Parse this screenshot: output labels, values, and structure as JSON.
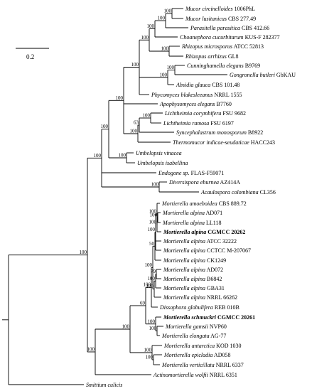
{
  "scale_bar_label": "0.2",
  "taxa": [
    {
      "id": "t1",
      "genus": "Mucor circinelloides",
      "strain": "1006PhL"
    },
    {
      "id": "t2",
      "genus": "Mucor lusitanicus",
      "strain": "CBS 277.49"
    },
    {
      "id": "t3",
      "genus": "Parasitella parasitica",
      "strain": "CBS 412.66"
    },
    {
      "id": "t4",
      "genus": "Choanephora cucurbitarum",
      "strain": "KUS-F 282377"
    },
    {
      "id": "t5",
      "genus": "Rhizopus microsporus",
      "strain": "ATCC 52813"
    },
    {
      "id": "t6",
      "genus": "Rhizopus arrhizus",
      "strain": "GL8"
    },
    {
      "id": "t7",
      "genus": "Cunninghamella elegans",
      "strain": "B9769"
    },
    {
      "id": "t8",
      "genus": "Gongronella butleri",
      "strain": "GbKAU"
    },
    {
      "id": "t9",
      "genus": "Absidia glauca",
      "strain": "CBS 101.48"
    },
    {
      "id": "t10",
      "genus": "Phycomyces blakesleeanus",
      "strain": "NRRL 1555"
    },
    {
      "id": "t11",
      "genus": "Apophysomyces elegans",
      "strain": "B7760"
    },
    {
      "id": "t12",
      "genus": "Lichtheimia corymbifera",
      "strain": "FSU 9682"
    },
    {
      "id": "t13",
      "genus": "Lichtheimia ramosa",
      "strain": "FSU 6197"
    },
    {
      "id": "t14",
      "genus": "Syncephalastrum monosporum",
      "strain": "B8922"
    },
    {
      "id": "t15",
      "genus": "Thermomucor indicae-seudaticae",
      "strain": "HACC243"
    },
    {
      "id": "t16",
      "genus": "Umbelopsis vinacea",
      "strain": ""
    },
    {
      "id": "t17",
      "genus": "Umbelopsis isabellina",
      "strain": ""
    },
    {
      "id": "t18",
      "genus": "Endogone sp.",
      "strain": "FLAS-F59071"
    },
    {
      "id": "t19",
      "genus": "Diversispora eburnea",
      "strain": "AZ414A"
    },
    {
      "id": "t20",
      "genus": "Acaulospora colombiana",
      "strain": "CL356"
    },
    {
      "id": "t21",
      "genus": "Mortierella amoeboidea",
      "strain": "CBS 889.72"
    },
    {
      "id": "t22",
      "genus": "Mortierella alpina",
      "strain": "AD071"
    },
    {
      "id": "t23",
      "genus": "Mortierella alpina",
      "strain": "LL118"
    },
    {
      "id": "t24",
      "genus": "Mortierella alpina",
      "strain": "CGMCC 20262",
      "bold": true
    },
    {
      "id": "t25",
      "genus": "Mortierella alpina",
      "strain": "ATCC 32222"
    },
    {
      "id": "t26",
      "genus": "Mortierella alpina",
      "strain": "CCTCC M-207067"
    },
    {
      "id": "t27",
      "genus": "Mortierella alpina",
      "strain": "CK1249"
    },
    {
      "id": "t28",
      "genus": "Mortierella alpina",
      "strain": "AD072"
    },
    {
      "id": "t29",
      "genus": "Mortierella alpina",
      "strain": "B6842"
    },
    {
      "id": "t30",
      "genus": "Mortierella alpina",
      "strain": "GBA31"
    },
    {
      "id": "t31",
      "genus": "Mortierella alpina",
      "strain": "NRRL 66262"
    },
    {
      "id": "t32",
      "genus": "Dissophora globulifera",
      "strain": "REB 010B"
    },
    {
      "id": "t33",
      "genus": "Mortierella schmuckri",
      "strain": "CGMCC 20261",
      "bold": true
    },
    {
      "id": "t34",
      "genus": "Mortierella gamsii",
      "strain": "NVP60"
    },
    {
      "id": "t35",
      "genus": "Mortierella elongata",
      "strain": "AG-77"
    },
    {
      "id": "t36",
      "genus": "Mortierella antarctica",
      "strain": "KOD 1030"
    },
    {
      "id": "t37",
      "genus": "Mortierella epicladia",
      "strain": "AD058"
    },
    {
      "id": "t38",
      "genus": "Mortierella verticillata",
      "strain": "NRRL 6337"
    },
    {
      "id": "t39",
      "genus": "Actinomortierella wolfii",
      "strain": "NRRL 6351"
    },
    {
      "id": "t40",
      "genus": "Smittium culicis",
      "strain": ""
    }
  ],
  "bootstrap": [
    {
      "id": "n_muc1",
      "value": "100"
    },
    {
      "id": "n_muc2",
      "value": "100"
    },
    {
      "id": "n_muc3",
      "value": "100"
    },
    {
      "id": "n_rhi",
      "value": "100"
    },
    {
      "id": "n_muc4",
      "value": "100"
    },
    {
      "id": "n_cg",
      "value": "100"
    },
    {
      "id": "n_abs",
      "value": "100"
    },
    {
      "id": "n_phy",
      "value": "100"
    },
    {
      "id": "n_lic",
      "value": "100"
    },
    {
      "id": "n_lic2",
      "value": "63"
    },
    {
      "id": "n_lic3",
      "value": "100"
    },
    {
      "id": "n_mucor",
      "value": "100"
    },
    {
      "id": "n_umb",
      "value": "100"
    },
    {
      "id": "n_mu",
      "value": "100"
    },
    {
      "id": "n_ac",
      "value": "100"
    },
    {
      "id": "n_div",
      "value": "100"
    },
    {
      "id": "n_e",
      "value": "68"
    },
    {
      "id": "n_ad",
      "value": "100"
    },
    {
      "id": "n_ll",
      "value": "100"
    },
    {
      "id": "n_cg2",
      "value": "100"
    },
    {
      "id": "n_am",
      "value": "100"
    },
    {
      "id": "n_atcc",
      "value": "50"
    },
    {
      "id": "n_al7",
      "value": "79"
    },
    {
      "id": "n_al8",
      "value": "100"
    },
    {
      "id": "n_al9",
      "value": "100"
    },
    {
      "id": "n_al10",
      "value": "100"
    },
    {
      "id": "n_alp",
      "value": "100"
    },
    {
      "id": "n_dis",
      "value": "69"
    },
    {
      "id": "n_ge",
      "value": "100"
    },
    {
      "id": "n_sch",
      "value": "100"
    },
    {
      "id": "n_aep",
      "value": "100"
    },
    {
      "id": "n_aepv",
      "value": "100"
    },
    {
      "id": "n_mor",
      "value": "100"
    },
    {
      "id": "n_mor2",
      "value": "100"
    },
    {
      "id": "n_mor3",
      "value": "100"
    }
  ]
}
